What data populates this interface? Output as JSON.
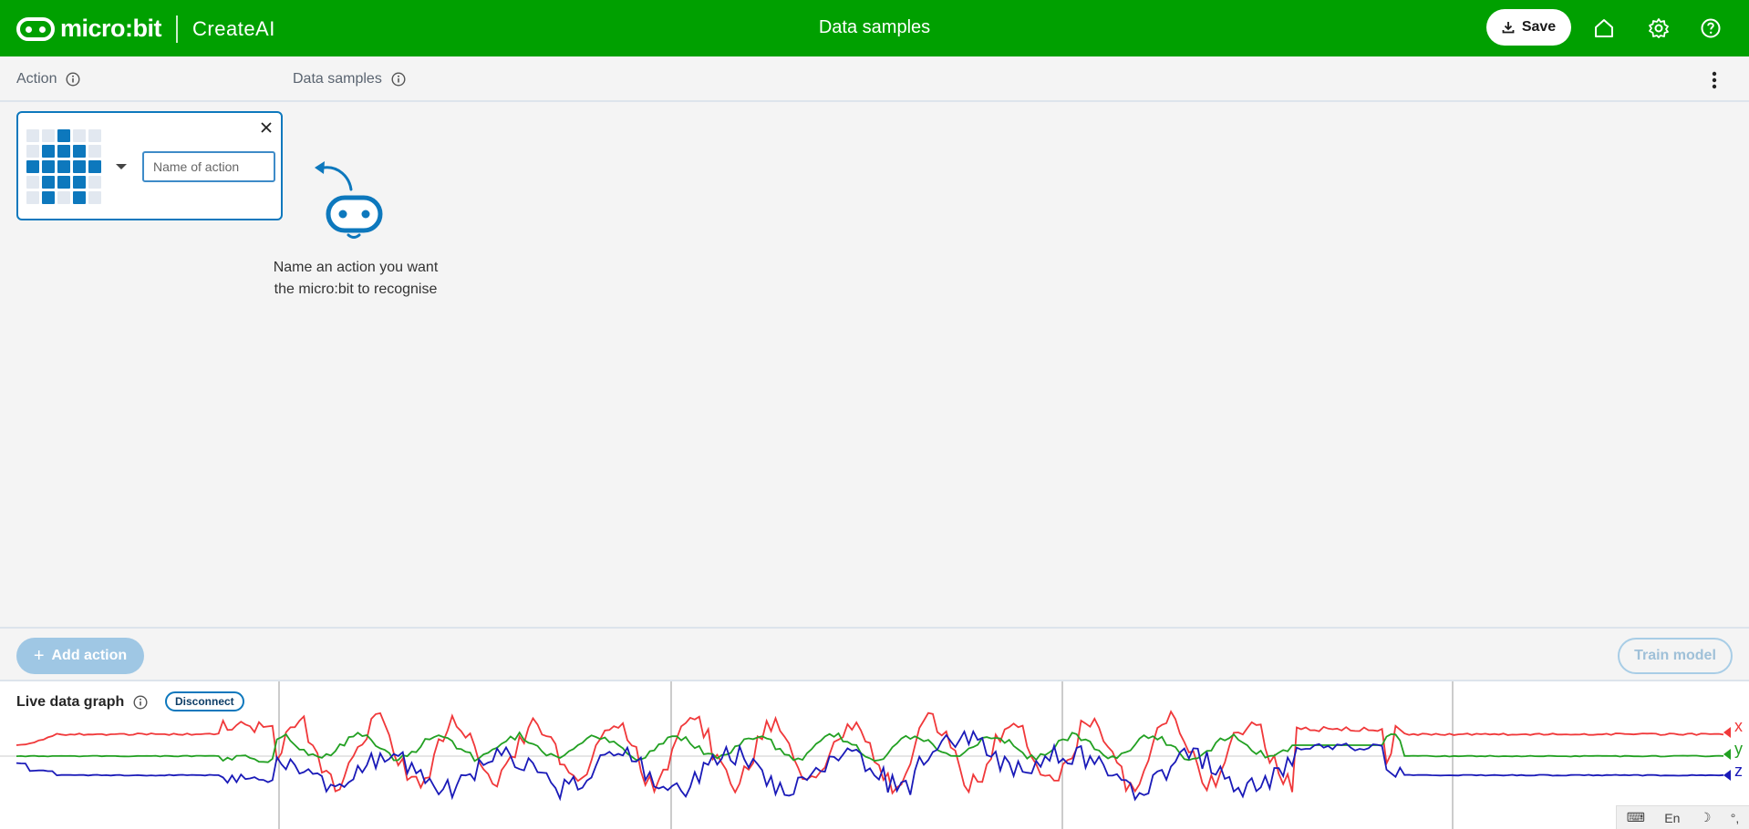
{
  "header": {
    "brand": "micro:bit",
    "product": "CreateAI",
    "title": "Data samples",
    "save_label": "Save",
    "background": "#00a000"
  },
  "columns": {
    "action": "Action",
    "data_samples": "Data samples"
  },
  "action_card": {
    "placeholder": "Name of action",
    "value": "",
    "led_pattern": [
      [
        0,
        0,
        1,
        0,
        0
      ],
      [
        0,
        1,
        1,
        1,
        0
      ],
      [
        1,
        1,
        1,
        1,
        1
      ],
      [
        0,
        1,
        1,
        1,
        0
      ],
      [
        0,
        1,
        0,
        1,
        0
      ]
    ]
  },
  "hint": {
    "line1": "Name an action you want",
    "line2": "the micro:bit to recognise"
  },
  "bottom": {
    "add_action_label": "Add action",
    "train_label": "Train model"
  },
  "graph": {
    "label": "Live data graph",
    "disconnect_label": "Disconnect",
    "axes": [
      {
        "name": "x",
        "color": "#f0383a"
      },
      {
        "name": "y",
        "color": "#22a022"
      },
      {
        "name": "z",
        "color": "#1a1ab8"
      }
    ]
  },
  "tray": {
    "lang": "En"
  },
  "colors": {
    "accent": "#0d78bd",
    "header_green": "#00a000"
  }
}
